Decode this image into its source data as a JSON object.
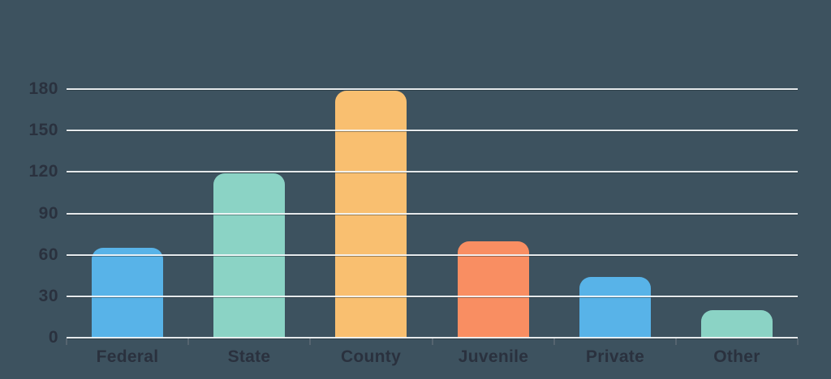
{
  "chart_data": {
    "type": "bar",
    "title": "",
    "xlabel": "",
    "ylabel": "",
    "categories": [
      "Federal",
      "State",
      "County",
      "Juvenile",
      "Private",
      "Other"
    ],
    "values": [
      65,
      119,
      179,
      70,
      44,
      20
    ],
    "bar_colors": [
      "#58b3e8",
      "#8bd3c5",
      "#f9bf70",
      "#f98e62",
      "#58b3e8",
      "#8bd3c5"
    ],
    "ylim": [
      0,
      180
    ],
    "yticks": [
      0,
      30,
      60,
      90,
      120,
      150,
      180
    ],
    "grid": true,
    "gridlines_over_bars": true,
    "legend": false
  },
  "colors": {
    "background": "#3d525f",
    "grid_line": "#f3f6f7",
    "axis_text": "#2a313e",
    "tick_mark": "#55646f"
  }
}
